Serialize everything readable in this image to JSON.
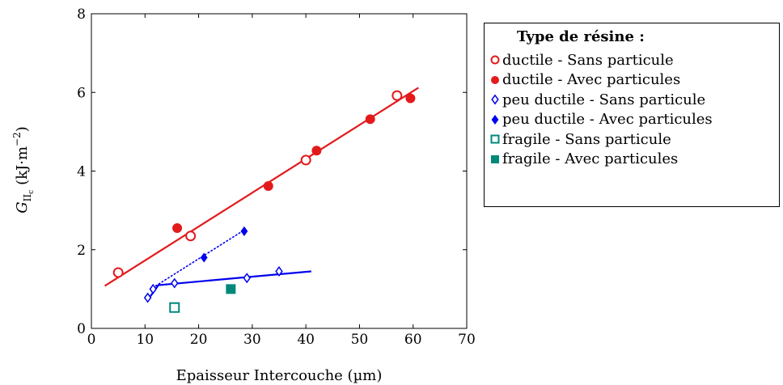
{
  "chart_data": {
    "type": "scatter",
    "title": "",
    "xlabel": "Epaisseur Intercouche (µm)",
    "ylabel_symbol": "G",
    "ylabel_subscript": "II",
    "ylabel_subsubscript": "c",
    "ylabel_unit_prefix": "(kJ·m",
    "ylabel_unit_exponent": "−2",
    "ylabel_unit_suffix": ")",
    "xlim": [
      0,
      70
    ],
    "ylim": [
      0,
      8
    ],
    "x_ticks": [
      0,
      10,
      20,
      30,
      40,
      50,
      60,
      70
    ],
    "y_ticks": [
      0,
      2,
      4,
      6,
      8
    ],
    "grid": false,
    "legend_title": "Type de résine :",
    "legend_position": "right, outside",
    "series": [
      {
        "name": "ductile - Sans particule",
        "marker": "circle-open",
        "color": "#e31a1c",
        "x": [
          5,
          18.5,
          40,
          57
        ],
        "y": [
          1.42,
          2.35,
          4.28,
          5.92
        ]
      },
      {
        "name": "ductile - Avec particules",
        "marker": "circle-filled",
        "color": "#e31a1c",
        "x": [
          16,
          33,
          42,
          52,
          59.5
        ],
        "y": [
          2.55,
          3.62,
          4.52,
          5.32,
          5.85
        ]
      },
      {
        "name": "peu ductile - Sans particule",
        "marker": "diamond-open",
        "color": "#0000ee",
        "x": [
          10.5,
          11.5,
          15.5,
          29,
          35
        ],
        "y": [
          0.78,
          1.0,
          1.15,
          1.28,
          1.45
        ]
      },
      {
        "name": "peu ductile - Avec particules",
        "marker": "diamond-filled",
        "color": "#0000ee",
        "x": [
          21,
          28.5
        ],
        "y": [
          1.8,
          2.47
        ]
      },
      {
        "name": "fragile - Sans particule",
        "marker": "square-open",
        "color": "#00897b",
        "x": [
          15.5
        ],
        "y": [
          0.53
        ]
      },
      {
        "name": "fragile - Avec particules",
        "marker": "square-filled",
        "color": "#00897b",
        "x": [
          26
        ],
        "y": [
          1.0
        ]
      }
    ],
    "fit_lines": [
      {
        "style": "solid",
        "color": "#e31a1c",
        "x": [
          2.5,
          61
        ],
        "y": [
          1.08,
          6.12
        ]
      },
      {
        "style": "solid",
        "color": "#0000ee",
        "x": [
          10.5,
          12.5,
          41
        ],
        "y": [
          0.72,
          1.1,
          1.45
        ]
      },
      {
        "style": "dotted",
        "color": "#0000ee",
        "x": [
          12,
          28.5
        ],
        "y": [
          1.08,
          2.5
        ]
      }
    ]
  }
}
